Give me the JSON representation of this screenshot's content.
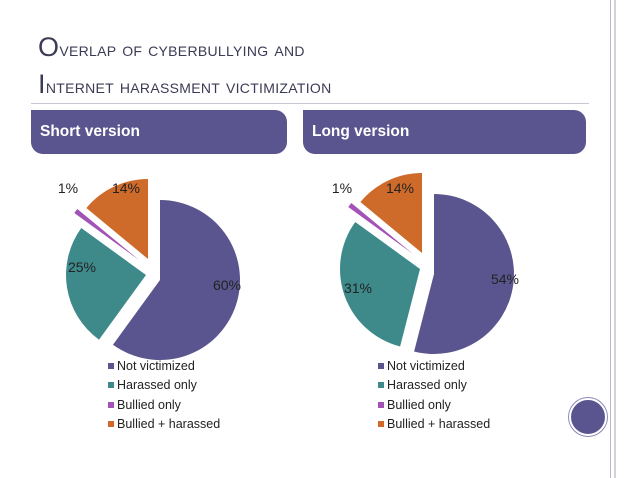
{
  "slide": {
    "title_line1": "Overlap of cyberbullying and",
    "title_line2": "Internet harassment victimization"
  },
  "colors": {
    "accent": "#5a558e",
    "not_victimized": "#5a558e",
    "harassed_only": "#3e8a8b",
    "bullied_only": "#a352b5",
    "bullied_harassed": "#cf6b2a"
  },
  "chart_data": [
    {
      "type": "pie",
      "title": "Short version",
      "categories": [
        "Not victimized",
        "Harassed only",
        "Bullied only",
        "Bullied + harassed"
      ],
      "values": [
        60,
        25,
        1,
        14
      ],
      "data_labels": [
        "60%",
        "25%",
        "1%",
        "14%"
      ],
      "exploded": true,
      "legend_position": "bottom"
    },
    {
      "type": "pie",
      "title": "Long version",
      "categories": [
        "Not victimized",
        "Harassed only",
        "Bullied only",
        "Bullied + harassed"
      ],
      "values": [
        54,
        31,
        1,
        14
      ],
      "data_labels": [
        "54%",
        "31%",
        "1%",
        "14%"
      ],
      "exploded": true,
      "legend_position": "bottom"
    }
  ]
}
